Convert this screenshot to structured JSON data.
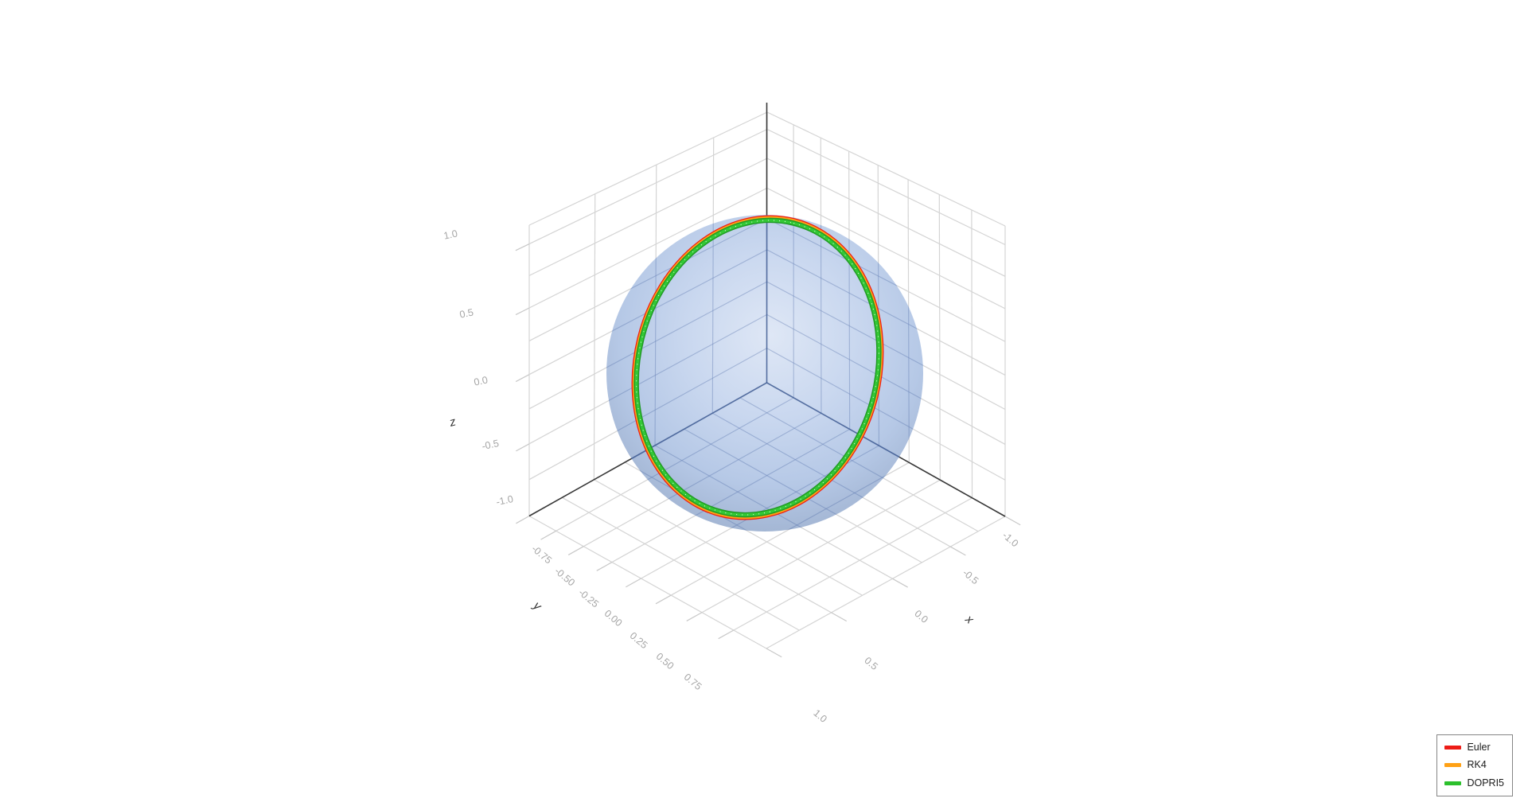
{
  "figure": {
    "background": "#ffffff"
  },
  "chart_data": {
    "type": "scatter",
    "subtype": "3d-trajectories-on-sphere",
    "title": "",
    "projection": "3D perspective view, floor and two back wall panes with grid",
    "axes": {
      "x": {
        "title": "x",
        "range": [
          -1,
          1
        ],
        "tick_labels": [
          "-1.0",
          "-0.5",
          "0.0",
          "0.5",
          "1.0"
        ],
        "grid": true
      },
      "y": {
        "title": "y",
        "range": [
          -1,
          1
        ],
        "tick_labels": [
          "-0.75",
          "-0.50",
          "-0.25",
          "0.00",
          "0.25",
          "0.50",
          "0.75"
        ],
        "grid": true
      },
      "z": {
        "title": "z",
        "range": [
          -1,
          1
        ],
        "tick_labels": [
          "1.0",
          "0.5",
          "0.0",
          "-0.5",
          "-1.0"
        ],
        "grid": true
      }
    },
    "surface": {
      "name": "unit sphere",
      "center": [
        0,
        0,
        0
      ],
      "radius": 1.0,
      "fill": "#aec3e6",
      "opacity": 0.85
    },
    "series": [
      {
        "name": "Euler",
        "color": "#ed1c16"
      },
      {
        "name": "RK4",
        "color": "#ffa115"
      },
      {
        "name": "DOPRI5",
        "color": "#2cc02c"
      }
    ],
    "trajectory": {
      "description": "All three integrator trajectories coincide visually as one great circle of radius 1 on the unit sphere, approximately in the x-z plane, passing close to both poles; DOPRI5 (green) is drawn on top with thin RK4 (orange) fringes visible at the edges.",
      "sample_points": [
        [
          1,
          0,
          0
        ],
        [
          0.707,
          0,
          0.707
        ],
        [
          0,
          0,
          1
        ],
        [
          -0.707,
          0,
          0.707
        ],
        [
          -1,
          0,
          0
        ],
        [
          -0.707,
          0,
          -0.707
        ],
        [
          0,
          0,
          -1
        ],
        [
          0.707,
          0,
          -0.707
        ]
      ]
    },
    "legend": {
      "position": "bottom-right",
      "border_color": "#858585",
      "entries": [
        {
          "label": "Euler",
          "color": "#ed1c16"
        },
        {
          "label": "RK4",
          "color": "#ffa115"
        },
        {
          "label": "DOPRI5",
          "color": "#2cc02c"
        }
      ]
    }
  },
  "colors": {
    "grid": "#d4d4d4",
    "tick_stub": "#c8c8c8",
    "axis_line": "#383838",
    "tick_text": "#a6a6a6",
    "axis_title": "#333333",
    "trajectory_green_dark": "#219926",
    "trajectory_green_bright": "#33c935"
  }
}
